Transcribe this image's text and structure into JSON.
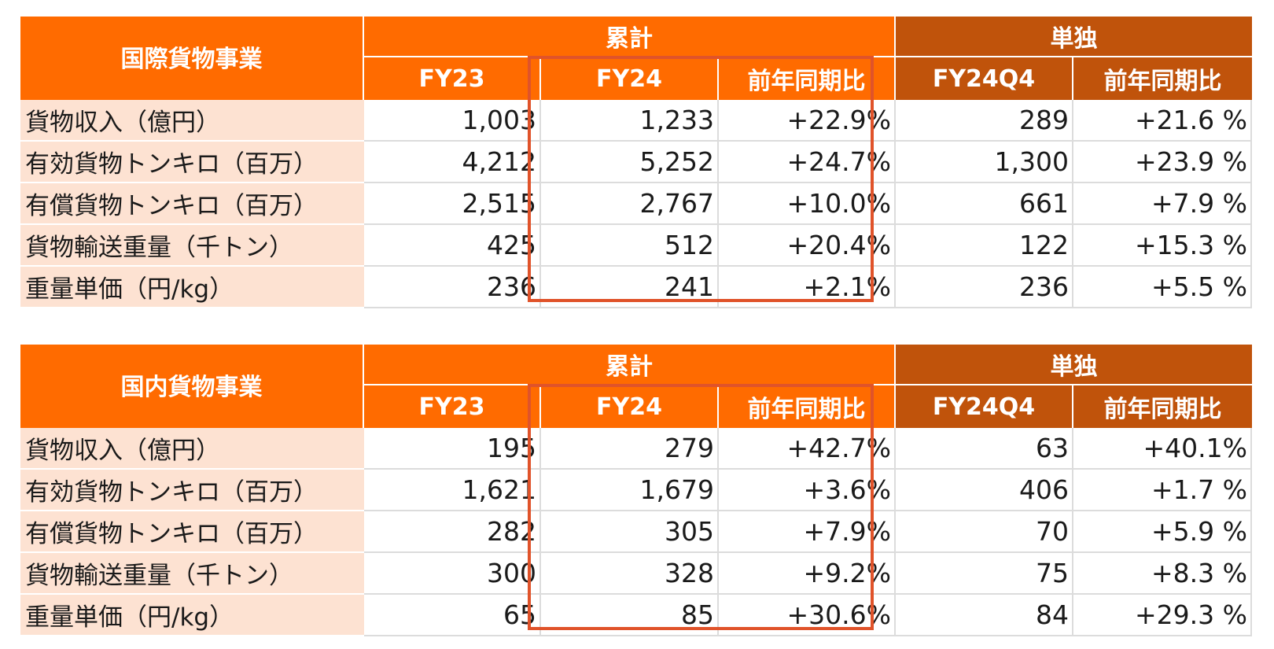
{
  "tables": [
    {
      "title": "国際貨物事業",
      "group_cumulative": "累計",
      "group_single": "単独",
      "columns": [
        "FY23",
        "FY24",
        "前年同期比",
        "FY24Q4",
        "前年同期比"
      ],
      "rows": [
        {
          "label": "貨物収入（億円）",
          "values": [
            "1,003",
            "1,233",
            "+22.9%",
            "289",
            "+21.6 %"
          ]
        },
        {
          "label": "有効貨物トンキロ（百万）",
          "values": [
            "4,212",
            "5,252",
            "+24.7%",
            "1,300",
            "+23.9 %"
          ]
        },
        {
          "label": "有償貨物トンキロ（百万）",
          "values": [
            "2,515",
            "2,767",
            "+10.0%",
            "661",
            "+7.9 %"
          ]
        },
        {
          "label": "貨物輸送重量（千トン）",
          "values": [
            "425",
            "512",
            "+20.4%",
            "122",
            "+15.3 %"
          ]
        },
        {
          "label": "重量単価（円/kg）",
          "values": [
            "236",
            "241",
            "+2.1%",
            "236",
            "+5.5 %"
          ]
        }
      ]
    },
    {
      "title": "国内貨物事業",
      "group_cumulative": "累計",
      "group_single": "単独",
      "columns": [
        "FY23",
        "FY24",
        "前年同期比",
        "FY24Q4",
        "前年同期比"
      ],
      "rows": [
        {
          "label": "貨物収入（億円）",
          "values": [
            "195",
            "279",
            "+42.7%",
            "63",
            "+40.1%"
          ]
        },
        {
          "label": "有効貨物トンキロ（百万）",
          "values": [
            "1,621",
            "1,679",
            "+3.6%",
            "406",
            "+1.7 %"
          ]
        },
        {
          "label": "有償貨物トンキロ（百万）",
          "values": [
            "282",
            "305",
            "+7.9%",
            "70",
            "+5.9 %"
          ]
        },
        {
          "label": "貨物輸送重量（千トン）",
          "values": [
            "300",
            "328",
            "+9.2%",
            "75",
            "+8.3 %"
          ]
        },
        {
          "label": "重量単価（円/kg）",
          "values": [
            "65",
            "85",
            "+30.6%",
            "84",
            "+29.3 %"
          ]
        }
      ]
    }
  ],
  "colors": {
    "header_orange": "#ff6b00",
    "header_brown": "#c0530b",
    "label_bg": "#fde2d2",
    "highlight_border": "#e0532a"
  }
}
